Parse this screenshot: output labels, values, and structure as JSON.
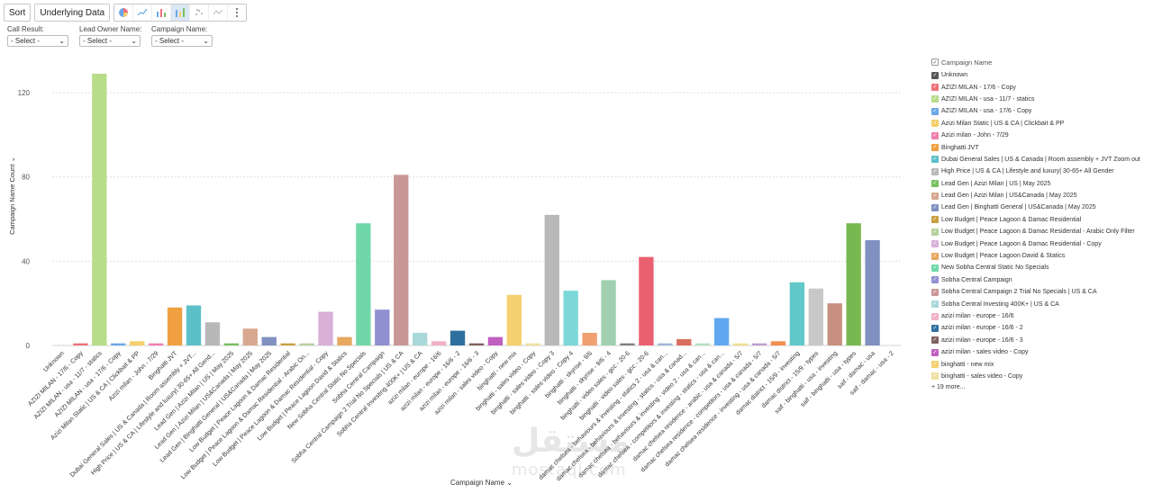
{
  "toolbar": {
    "sort_label": "Sort",
    "underlying_label": "Underlying Data",
    "icons": [
      "pie-icon",
      "line-icon",
      "bar-icon",
      "stacked-bar-icon",
      "scatter-icon",
      "area-icon",
      "more-icon"
    ]
  },
  "filters": [
    {
      "label": "Call Result:",
      "value": "- Select -"
    },
    {
      "label": "Lead Owner Name:",
      "value": "- Select -"
    },
    {
      "label": "Campaign Name:",
      "value": "- Select -"
    }
  ],
  "watermark": {
    "logo": "مستقل",
    "domain": "mostaql.com"
  },
  "chart_data": {
    "type": "bar",
    "xlabel": "Campaign Name",
    "ylabel": "Campaign Name Count",
    "ylim": [
      0,
      130
    ],
    "yticks": [
      0,
      40,
      80,
      120
    ],
    "grid": true,
    "legend_title": "Campaign Name",
    "legend_more": "+ 19 more...",
    "categories": [
      "Unknown",
      "AZIZI MILAN - 17/6 - Copy",
      "AZIZI MILAN - usa - 11/7 - statics",
      "AZIZI MILAN - usa - 17/6 - Copy",
      "Azizi Milan Static | US & CA | Clickbait & PP",
      "Azizi milan - John - 7/29",
      "Binghatti JVT",
      "Dubai General Sales | US & Canada | Room assembly + JVT...",
      "High Price | US & CA | Lifestyle and luxury| 30-65+ All Gend...",
      "Lead Gen | Azizi Milan | US | May 2025",
      "Lead Gen | Azizi Milan | US&Canada | May 2025",
      "Lead Gen | Binghatti General | US&Canada | May 2025",
      "Low Budget | Peace Lagoon & Damac Residential",
      "Low Budget | Peace Lagoon & Damac Residential - Arabic On...",
      "Low Budget | Peace Lagoon & Damac Residential - Copy",
      "Low Budget | Peace Lagoon David & Statics",
      "New Sobha Central Static No Specials",
      "Sobha Central Campaign",
      "Sobha Central Campaign 2 Trial No Specials | US & CA",
      "Sobha Central Investing 400K+ | US & CA",
      "azizi milan - europe - 16/6",
      "azizi milan - europe - 16/6 - 2",
      "azizi milan - europe - 16/6 - 3",
      "azizi milan - sales video - Copy",
      "binghatti - new mix",
      "binghatti - sales video - Copy",
      "binghatti - sales video - Copy 3",
      "binghatti - sales video - Copy 4",
      "binghatti - skyrise - 9/6",
      "binghatti - skyrise - 9/6 - 4",
      "binghatti - video sales - gcc - 20-6",
      "binghatti - video sales - gcc - 20-6",
      "damac chelsea - behaviours & investing - statics 2 - usa & can...",
      "damac chelsea - behaviours & investing - statics - usa & canad...",
      "damac chelsea - behaviours & investing - video 2 - usa & can...",
      "damac chelsea - competitors & investing - statics - usa & can...",
      "damac chelsea residence - arabic - usa & canada - 5/7",
      "damac chelsea residence - competitors - usa & canada - 5/7",
      "damac chelsea residence - investing - usa & canada - 5/7",
      "damac district - 15/9 - investing",
      "damac district - 15/9 - types",
      "saif - binghatti - usa - investing",
      "saif - binghatti - usa - types",
      "saif - damac - usa",
      "saif - damac - usa - 2"
    ],
    "xtick_labels": [
      "Unknown",
      "AZIZI MILAN - 17/6 - Copy",
      "AZIZI MILAN - usa - 11/7 - statics",
      "AZIZI MILAN - usa - 17/6 - Copy",
      "Azizi Milan Static | US & CA | Clickbait & PP",
      "Azizi milan - John - 7/29",
      "Binghatti JVT",
      "Dubai General Sales | US & Canada | Room assembly + JVT...",
      "High Price | US & CA | Lifestyle and luxury| 30-65+ All Gend...",
      "Lead Gen | Azizi Milan | US | May 2025",
      "Lead Gen | Azizi Milan | US&Canada | May 2025",
      "Lead Gen | Binghatti General | US&Canada | May 2025",
      "Low Budget | Peace Lagoon & Damac Residential",
      "Low Budget | Peace Lagoon & Damac Residential - Arabic On...",
      "Low Budget | Peace Lagoon & Damac Residential - Copy",
      "Low Budget | Peace Lagoon David & Statics",
      "New Sobha Central Static No Specials",
      "Sobha Central Campaign",
      "Sobha Central Campaign 2 Trial No Specials | US & CA",
      "Sobha Central Investing 400K+ | US & CA",
      "azizi milan - europe - 16/6",
      "azizi milan - europe - 16/6 - 2",
      "azizi milan - europe - 16/6 - 3",
      "azizi milan - sales video - Copy",
      "binghatti - new mix",
      "binghatti - sales video - Copy",
      "binghatti - sales video - Copy 3",
      "binghatti - sales video - Copy 4",
      "binghatti - skyrise - 9/6",
      "binghatti - skyrise - 9/6 - 4",
      "binghatti - video sales - gcc - 20-6",
      "binghatti - video sales - gcc - 20-6",
      "damac chelsea - behaviours & investing - statics 2 - usa & can...",
      "damac chelsea - behaviours & investing - statics - usa & canad...",
      "damac chelsea - behaviours & investing - video 2 - usa & can...",
      "damac chelsea - competitors & investing - statics - usa & can...",
      "damac chelsea residence - arabic - usa & canada - 5/7",
      "damac chelsea residence - competitors - usa & canada - 5/7",
      "damac chelsea residence - investing - usa & canada - 5/7",
      "damac district - 15/9 - investing",
      "damac district - 15/9 - types",
      "saif - binghatti - usa - investing",
      "saif - binghatti - usa - types",
      "saif - damac - usa",
      "saif - damac - usa - 2"
    ],
    "values": [
      0,
      1,
      129,
      1,
      2,
      1,
      18,
      19,
      11,
      1,
      8,
      4,
      1,
      1,
      16,
      4,
      58,
      17,
      81,
      6,
      2,
      7,
      1,
      4,
      24,
      1,
      62,
      26,
      6,
      31,
      1,
      42,
      1,
      3,
      1,
      13,
      1,
      1,
      2,
      30,
      27,
      20,
      58,
      50,
      0
    ],
    "colors": [
      "#555555",
      "#f0727a",
      "#b8dd8a",
      "#6aa8e8",
      "#f5cf6a",
      "#ef7fae",
      "#f0a040",
      "#5cc0c8",
      "#b8b8b8",
      "#78c060",
      "#d8a890",
      "#8090c0",
      "#c8a040",
      "#b8d0a0",
      "#d8b0d8",
      "#e8a860",
      "#70d8a8",
      "#9090d0",
      "#c89898",
      "#a8d8d8",
      "#f0b0c8",
      "#3070a0",
      "#806060",
      "#c060c0",
      "#f5d070",
      "#f0e0a0",
      "#b8b8b8",
      "#7cd8d8",
      "#f0a070",
      "#a0d0b0",
      "#808080",
      "#ea6070",
      "#a0b8d8",
      "#d87060",
      "#b8e0c0",
      "#60a8f0",
      "#f0e090",
      "#c0a0d0",
      "#f09050",
      "#60c8c8",
      "#c8c8c8",
      "#c89080",
      "#78b850",
      "#8090c0",
      "#c89830"
    ],
    "legend": [
      {
        "label": "Unknown",
        "color": "#555555"
      },
      {
        "label": "AZIZI MILAN - 17/6 - Copy",
        "color": "#f0727a"
      },
      {
        "label": "AZIZI MILAN - usa - 11/7 - statics",
        "color": "#b8dd8a"
      },
      {
        "label": "AZIZI MILAN - usa - 17/6 - Copy",
        "color": "#6aa8e8"
      },
      {
        "label": "Azizi Milan Static | US & CA | Clickbait & PP",
        "color": "#f5cf6a"
      },
      {
        "label": "Azizi milan - John - 7/29",
        "color": "#ef7fae"
      },
      {
        "label": "Binghatti JVT",
        "color": "#f0a040"
      },
      {
        "label": "Dubai General Sales | US & Canada | Room assembly + JVT Zoom out",
        "color": "#5cc0c8"
      },
      {
        "label": "High Price | US & CA | Lifestyle and luxury| 30-65+ All Gender",
        "color": "#b8b8b8"
      },
      {
        "label": "Lead Gen | Azizi Milan | US | May 2025",
        "color": "#78c060"
      },
      {
        "label": "Lead Gen | Azizi Milan | US&Canada | May 2025",
        "color": "#d8a890"
      },
      {
        "label": "Lead Gen | Binghatti General | US&Canada | May 2025",
        "color": "#8090c0"
      },
      {
        "label": "Low Budget | Peace Lagoon & Damac Residential",
        "color": "#c8a040"
      },
      {
        "label": "Low Budget | Peace Lagoon & Damac Residential - Arabic Only Filter",
        "color": "#b8d0a0"
      },
      {
        "label": "Low Budget | Peace Lagoon & Damac Residential - Copy",
        "color": "#d8b0d8"
      },
      {
        "label": "Low Budget | Peace Lagoon David & Statics",
        "color": "#e8a860"
      },
      {
        "label": "New Sobha Central Static No Specials",
        "color": "#70d8a8"
      },
      {
        "label": "Sobha Central Campaign",
        "color": "#9090d0"
      },
      {
        "label": "Sobha Central Campaign 2 Trial No Specials | US & CA",
        "color": "#c89898"
      },
      {
        "label": "Sobha Central Investing 400K+ | US & CA",
        "color": "#a8d8d8"
      },
      {
        "label": "azizi milan - europe - 16/6",
        "color": "#f0b0c8"
      },
      {
        "label": "azizi milan - europe - 16/6 - 2",
        "color": "#3070a0"
      },
      {
        "label": "azizi milan - europe - 16/6 - 3",
        "color": "#806060"
      },
      {
        "label": "azizi milan - sales video - Copy",
        "color": "#c060c0"
      },
      {
        "label": "binghatti - new mix",
        "color": "#f5d070"
      },
      {
        "label": "binghatti - sales video - Copy",
        "color": "#f0e0a0"
      }
    ]
  }
}
